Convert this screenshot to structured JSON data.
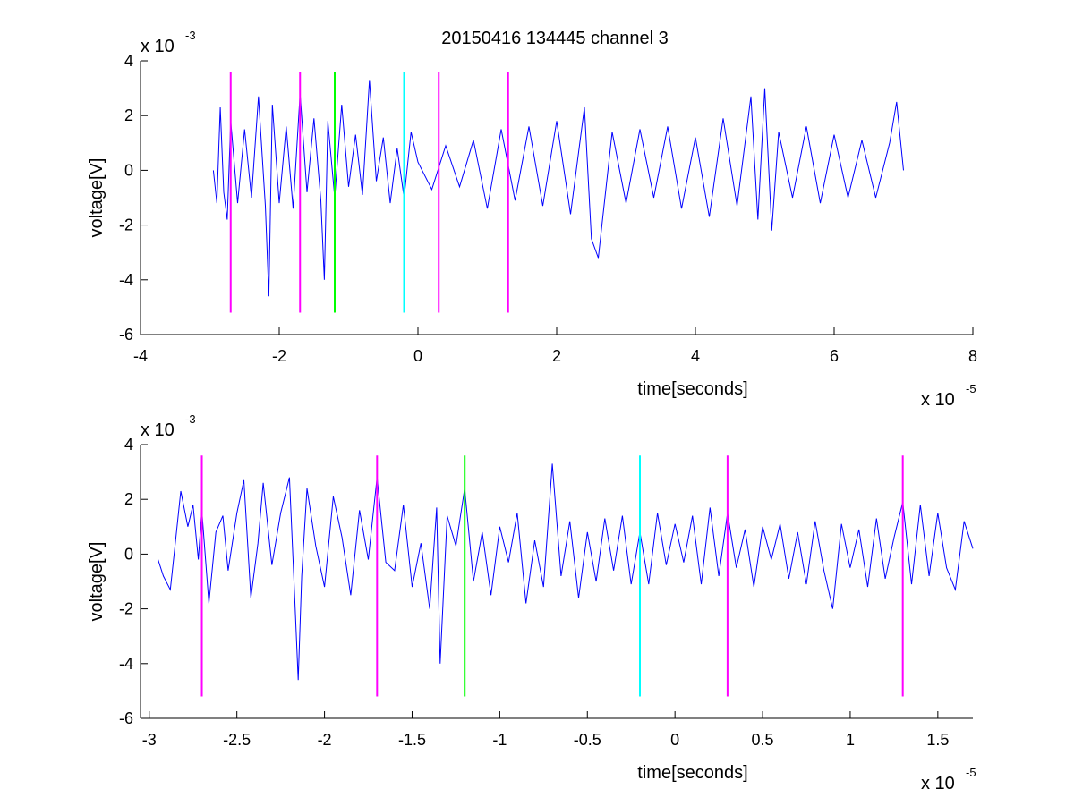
{
  "title": "20150416 134445 channel 3",
  "chart_data": [
    {
      "type": "line",
      "xlabel": "time[seconds]",
      "ylabel": "voltage[V]",
      "xlim": [
        -4,
        8
      ],
      "ylim": [
        -6,
        4
      ],
      "x_multiplier": {
        "base": "x 10",
        "exp": "-5"
      },
      "y_multiplier": {
        "base": "x 10",
        "exp": "-3"
      },
      "x_ticks": [
        "-4",
        "-2",
        "0",
        "2",
        "4",
        "6",
        "8"
      ],
      "y_ticks": [
        "-6",
        "-4",
        "-2",
        "0",
        "2",
        "4"
      ],
      "series": [
        {
          "color": "#0000ff",
          "x": [
            -2.95,
            -2.9,
            -2.85,
            -2.8,
            -2.75,
            -2.7,
            -2.6,
            -2.5,
            -2.4,
            -2.3,
            -2.2,
            -2.15,
            -2.1,
            -2.0,
            -1.9,
            -1.8,
            -1.7,
            -1.6,
            -1.5,
            -1.4,
            -1.35,
            -1.3,
            -1.2,
            -1.1,
            -1.0,
            -0.9,
            -0.8,
            -0.7,
            -0.6,
            -0.5,
            -0.4,
            -0.3,
            -0.2,
            -0.1,
            0.0,
            0.2,
            0.4,
            0.6,
            0.8,
            1.0,
            1.2,
            1.4,
            1.6,
            1.8,
            2.0,
            2.2,
            2.4,
            2.5,
            2.6,
            2.8,
            3.0,
            3.2,
            3.4,
            3.6,
            3.8,
            4.0,
            4.2,
            4.4,
            4.6,
            4.8,
            4.9,
            5.0,
            5.1,
            5.2,
            5.4,
            5.6,
            5.8,
            6.0,
            6.2,
            6.4,
            6.6,
            6.8,
            6.9,
            7.0
          ],
          "y": [
            0.0,
            -1.2,
            2.3,
            -0.8,
            -1.8,
            1.8,
            -1.2,
            1.5,
            -1.0,
            2.7,
            -1.3,
            -4.6,
            2.4,
            -1.2,
            1.6,
            -1.4,
            2.8,
            -0.8,
            1.9,
            -1.1,
            -4.0,
            1.8,
            -1.0,
            2.4,
            -0.6,
            1.3,
            -0.9,
            3.3,
            -0.4,
            1.2,
            -1.2,
            0.8,
            -1.0,
            1.4,
            0.3,
            -0.7,
            0.9,
            -0.6,
            1.1,
            -1.4,
            1.5,
            -1.1,
            1.6,
            -1.3,
            1.8,
            -1.6,
            2.3,
            -2.5,
            -3.2,
            1.4,
            -1.2,
            1.5,
            -1.0,
            1.6,
            -1.4,
            1.2,
            -1.7,
            1.9,
            -1.3,
            2.7,
            -1.8,
            3.0,
            -2.2,
            1.4,
            -1.0,
            1.6,
            -1.2,
            1.3,
            -1.0,
            1.1,
            -1.0,
            1.0,
            2.5,
            0.0
          ]
        }
      ],
      "markers": [
        {
          "x": -2.7,
          "color": "#ff00ff"
        },
        {
          "x": -1.7,
          "color": "#ff00ff"
        },
        {
          "x": -1.2,
          "color": "#00ff00"
        },
        {
          "x": -0.2,
          "color": "#00ffff"
        },
        {
          "x": 0.3,
          "color": "#ff00ff"
        },
        {
          "x": 1.3,
          "color": "#ff00ff"
        }
      ],
      "marker_range": [
        -5.2,
        3.6
      ]
    },
    {
      "type": "line",
      "xlabel": "time[seconds]",
      "ylabel": "voltage[V]",
      "xlim": [
        -3.05,
        1.7
      ],
      "ylim": [
        -6,
        4
      ],
      "x_multiplier": {
        "base": "x 10",
        "exp": "-5"
      },
      "y_multiplier": {
        "base": "x 10",
        "exp": "-3"
      },
      "x_ticks": [
        "-3",
        "-2.5",
        "-2",
        "-1.5",
        "-1",
        "-0.5",
        "0",
        "0.5",
        "1",
        "1.5"
      ],
      "y_ticks": [
        "-6",
        "-4",
        "-2",
        "0",
        "2",
        "4"
      ],
      "series": [
        {
          "color": "#0000ff",
          "x": [
            -2.95,
            -2.92,
            -2.88,
            -2.85,
            -2.82,
            -2.78,
            -2.75,
            -2.72,
            -2.7,
            -2.66,
            -2.62,
            -2.58,
            -2.55,
            -2.5,
            -2.46,
            -2.42,
            -2.38,
            -2.35,
            -2.3,
            -2.25,
            -2.2,
            -2.17,
            -2.15,
            -2.13,
            -2.1,
            -2.05,
            -2.0,
            -1.95,
            -1.9,
            -1.85,
            -1.8,
            -1.75,
            -1.7,
            -1.65,
            -1.6,
            -1.55,
            -1.5,
            -1.45,
            -1.4,
            -1.36,
            -1.34,
            -1.3,
            -1.25,
            -1.2,
            -1.15,
            -1.1,
            -1.05,
            -1.0,
            -0.95,
            -0.9,
            -0.85,
            -0.8,
            -0.75,
            -0.7,
            -0.65,
            -0.6,
            -0.55,
            -0.5,
            -0.45,
            -0.4,
            -0.35,
            -0.3,
            -0.25,
            -0.2,
            -0.15,
            -0.1,
            -0.05,
            0.0,
            0.05,
            0.1,
            0.15,
            0.2,
            0.25,
            0.3,
            0.35,
            0.4,
            0.45,
            0.5,
            0.55,
            0.6,
            0.65,
            0.7,
            0.75,
            0.8,
            0.85,
            0.9,
            0.95,
            1.0,
            1.05,
            1.1,
            1.15,
            1.2,
            1.25,
            1.3,
            1.35,
            1.4,
            1.45,
            1.5,
            1.55,
            1.6,
            1.65,
            1.7
          ],
          "y": [
            -0.2,
            -0.8,
            -1.3,
            0.5,
            2.3,
            1.0,
            1.8,
            -0.2,
            1.6,
            -1.8,
            0.8,
            1.4,
            -0.6,
            1.5,
            2.7,
            -1.6,
            0.4,
            2.6,
            -0.4,
            1.5,
            2.8,
            -1.6,
            -4.6,
            -0.8,
            2.4,
            0.3,
            -1.2,
            2.1,
            0.6,
            -1.5,
            1.6,
            -0.2,
            2.8,
            -0.3,
            -0.6,
            1.8,
            -1.2,
            0.4,
            -2.0,
            1.7,
            -4.0,
            1.4,
            0.3,
            2.4,
            -1.0,
            0.8,
            -1.5,
            1.0,
            -0.3,
            1.5,
            -1.8,
            0.5,
            -1.2,
            3.3,
            -0.8,
            1.2,
            -1.6,
            0.8,
            -1.0,
            1.3,
            -0.6,
            1.4,
            -1.1,
            0.8,
            -1.1,
            1.5,
            -0.4,
            1.1,
            -0.3,
            1.4,
            -1.1,
            1.7,
            -0.8,
            1.5,
            -0.5,
            0.9,
            -1.2,
            1.0,
            -0.2,
            1.1,
            -0.9,
            0.8,
            -1.1,
            1.2,
            -0.6,
            -2.0,
            1.1,
            -0.5,
            0.9,
            -1.2,
            1.3,
            -0.9,
            0.6,
            1.9,
            -1.1,
            1.8,
            -0.8,
            1.5,
            -0.5,
            -1.3,
            1.2,
            0.2
          ]
        }
      ],
      "markers": [
        {
          "x": -2.7,
          "color": "#ff00ff"
        },
        {
          "x": -1.7,
          "color": "#ff00ff"
        },
        {
          "x": -1.2,
          "color": "#00ff00"
        },
        {
          "x": -0.2,
          "color": "#00ffff"
        },
        {
          "x": 0.3,
          "color": "#ff00ff"
        },
        {
          "x": 1.3,
          "color": "#ff00ff"
        }
      ],
      "marker_range": [
        -5.2,
        3.6
      ]
    }
  ]
}
